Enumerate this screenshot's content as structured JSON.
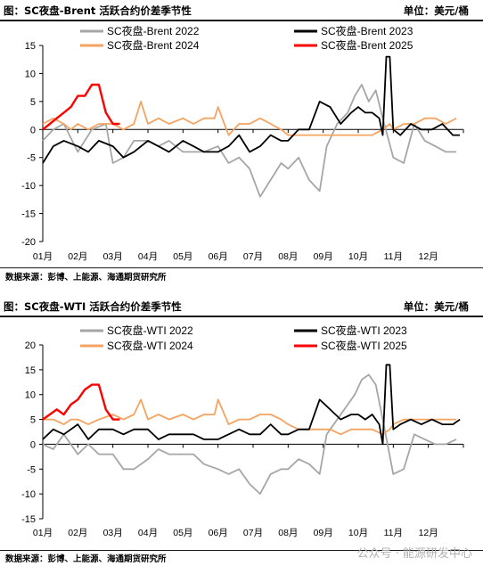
{
  "charts": [
    {
      "header_title": "图：SC夜盘-Brent 活跃合约价差季节性",
      "header_unit": "单位：美元/桶",
      "source": "数据来源：彭博、上能源、海通期货研究所"
    },
    {
      "header_title": "图：SC夜盘-WTI 活跃合约价差季节性",
      "header_unit": "单位：美元/桶",
      "source": "数据来源：彭博、上能源、海通期货研究所"
    }
  ],
  "watermark": "公众号 · 能源研发中心",
  "chart_data": [
    {
      "type": "line",
      "title": "",
      "ylim": [
        -20,
        15
      ],
      "yticks": [
        -20,
        -15,
        -10,
        -5,
        0,
        5,
        10,
        15
      ],
      "xlabels": [
        "01月",
        "02月",
        "03月",
        "04月",
        "05月",
        "06月",
        "07月",
        "08月",
        "09月",
        "10月",
        "11月",
        "12月"
      ],
      "legend_placement": "top",
      "series": [
        {
          "name": "SC夜盘-Brent 2022",
          "color": "#a6a6a6",
          "x": [
            0,
            0.3,
            0.6,
            1.0,
            1.4,
            1.8,
            2.0,
            2.3,
            2.6,
            3.0,
            3.3,
            3.6,
            4.0,
            4.3,
            4.6,
            5.0,
            5.3,
            5.6,
            5.9,
            6.2,
            6.5,
            6.8,
            7.0,
            7.3,
            7.6,
            7.9,
            8.1,
            8.4,
            8.7,
            8.9,
            9.1,
            9.3,
            9.5,
            9.7,
            10.0,
            10.3,
            10.6,
            10.9,
            11.2,
            11.5,
            11.8
          ],
          "y": [
            -2,
            0,
            1,
            -4,
            0,
            1,
            -6,
            -5,
            -2,
            -2,
            -3,
            -2,
            -4,
            -4,
            -4,
            -3,
            -6,
            -5,
            -7,
            -12,
            -9,
            -6,
            -7,
            -5,
            -9,
            -11,
            -3,
            1,
            3,
            6,
            8,
            5,
            7,
            2,
            -5,
            -6,
            1,
            -2,
            -3,
            -4,
            -4
          ]
        },
        {
          "name": "SC夜盘-Brent 2023",
          "color": "#000000",
          "x": [
            0,
            0.3,
            0.6,
            1.0,
            1.3,
            1.6,
            2.0,
            2.3,
            2.6,
            3.0,
            3.3,
            3.6,
            4.0,
            4.3,
            4.6,
            5.0,
            5.3,
            5.6,
            5.9,
            6.2,
            6.5,
            6.8,
            7.0,
            7.3,
            7.6,
            7.9,
            8.2,
            8.5,
            8.8,
            9.0,
            9.2,
            9.4,
            9.6,
            9.7,
            9.8,
            9.9,
            10.0,
            10.2,
            10.5,
            10.8,
            11.1,
            11.4,
            11.7,
            11.9
          ],
          "y": [
            -6,
            -3,
            -2,
            -3,
            -4,
            -2,
            -3,
            -5,
            -4,
            -2,
            -3,
            -4,
            -2,
            -3,
            -4,
            -4,
            -3,
            -1,
            -4,
            -3,
            -1,
            -2,
            -2,
            0,
            0,
            5,
            4,
            1,
            3,
            4,
            3,
            3,
            2,
            -1,
            13,
            13,
            0,
            -1,
            1,
            0,
            0,
            1,
            -1,
            -1
          ]
        },
        {
          "name": "SC夜盘-Brent 2024",
          "color": "#f4a460",
          "x": [
            0,
            0.3,
            0.6,
            0.8,
            1.0,
            1.3,
            1.6,
            2.0,
            2.3,
            2.6,
            2.8,
            3.0,
            3.3,
            3.6,
            4.0,
            4.3,
            4.6,
            4.9,
            5.0,
            5.3,
            5.6,
            5.9,
            6.2,
            6.5,
            6.8,
            7.0,
            7.3,
            7.6,
            7.9,
            8.2,
            8.5,
            8.8,
            9.1,
            9.4,
            9.7,
            9.9,
            10.0,
            10.3,
            10.6,
            10.9,
            11.2,
            11.5,
            11.8
          ],
          "y": [
            1,
            2,
            1,
            0,
            1,
            0,
            1,
            1,
            0,
            1,
            5,
            1,
            2,
            1,
            2,
            1,
            2,
            2,
            4,
            -1,
            1,
            1,
            2,
            1,
            0,
            -1,
            -1,
            -1,
            -1,
            -1,
            -1,
            -1,
            -1,
            -1,
            0,
            1,
            0,
            1,
            1,
            2,
            2,
            1,
            2
          ]
        },
        {
          "name": "SC夜盘-Brent 2025",
          "color": "#ff0000",
          "x": [
            0,
            0.2,
            0.4,
            0.6,
            0.8,
            1.0,
            1.2,
            1.4,
            1.6,
            1.8,
            2.0,
            2.2
          ],
          "y": [
            0,
            1,
            2,
            3,
            4,
            6,
            6,
            8,
            8,
            3,
            1,
            1
          ]
        }
      ]
    },
    {
      "type": "line",
      "title": "",
      "ylim": [
        -15,
        20
      ],
      "yticks": [
        -15,
        -10,
        -5,
        0,
        5,
        10,
        15,
        20
      ],
      "xlabels": [
        "01月",
        "02月",
        "03月",
        "04月",
        "05月",
        "06月",
        "07月",
        "08月",
        "09月",
        "10月",
        "11月",
        "12月"
      ],
      "legend_placement": "top",
      "series": [
        {
          "name": "SC夜盘-WTI 2022",
          "color": "#a6a6a6",
          "x": [
            0,
            0.3,
            0.6,
            1.0,
            1.3,
            1.6,
            2.0,
            2.3,
            2.6,
            3.0,
            3.3,
            3.6,
            4.0,
            4.3,
            4.6,
            5.0,
            5.3,
            5.6,
            5.9,
            6.2,
            6.5,
            6.8,
            7.0,
            7.3,
            7.6,
            7.9,
            8.1,
            8.4,
            8.7,
            8.9,
            9.1,
            9.3,
            9.5,
            9.7,
            10.0,
            10.3,
            10.6,
            10.9,
            11.2,
            11.5,
            11.8
          ],
          "y": [
            0,
            -1,
            2,
            -2,
            0,
            -2,
            -2,
            -5,
            -5,
            -3,
            -1,
            -2,
            -2,
            -2,
            -4,
            -5,
            -6,
            -5,
            -8,
            -10,
            -6,
            -5,
            -5,
            -3,
            -4,
            -6,
            2,
            5,
            8,
            10,
            13,
            14,
            12,
            5,
            -6,
            -5,
            2,
            1,
            0,
            0,
            1
          ]
        },
        {
          "name": "SC夜盘-WTI 2023",
          "color": "#000000",
          "x": [
            0,
            0.3,
            0.6,
            1.0,
            1.3,
            1.6,
            2.0,
            2.3,
            2.6,
            3.0,
            3.3,
            3.6,
            4.0,
            4.3,
            4.6,
            5.0,
            5.3,
            5.6,
            5.9,
            6.2,
            6.5,
            6.8,
            7.0,
            7.3,
            7.6,
            7.9,
            8.2,
            8.5,
            8.8,
            9.0,
            9.2,
            9.4,
            9.6,
            9.7,
            9.8,
            9.9,
            10.0,
            10.2,
            10.5,
            10.8,
            11.1,
            11.4,
            11.7,
            11.9
          ],
          "y": [
            1,
            3,
            2,
            4,
            1,
            3,
            3,
            2,
            3,
            3,
            1,
            2,
            2,
            2,
            1,
            1,
            2,
            3,
            2,
            2,
            4,
            2,
            2,
            3,
            3,
            9,
            7,
            5,
            6,
            6,
            5,
            6,
            4,
            0,
            16,
            16,
            3,
            4,
            5,
            4,
            5,
            4,
            4,
            5
          ]
        },
        {
          "name": "SC夜盘-WTI 2024",
          "color": "#f4a460",
          "x": [
            0,
            0.3,
            0.6,
            0.8,
            1.0,
            1.3,
            1.6,
            2.0,
            2.3,
            2.6,
            2.8,
            3.0,
            3.3,
            3.6,
            4.0,
            4.3,
            4.6,
            4.9,
            5.0,
            5.3,
            5.6,
            5.9,
            6.2,
            6.5,
            6.8,
            7.0,
            7.3,
            7.6,
            7.9,
            8.2,
            8.5,
            8.8,
            9.1,
            9.4,
            9.7,
            9.9,
            10.0,
            10.3,
            10.6,
            10.9,
            11.2,
            11.5,
            11.8
          ],
          "y": [
            5,
            5,
            4,
            5,
            5,
            4,
            5,
            6,
            5,
            6,
            9,
            5,
            6,
            5,
            6,
            5,
            6,
            6,
            9,
            4,
            5,
            5,
            6,
            6,
            5,
            4,
            3,
            3,
            3,
            3,
            2,
            3,
            3,
            3,
            2,
            3,
            4,
            5,
            5,
            5,
            5,
            5,
            5
          ]
        },
        {
          "name": "SC夜盘-WTI 2025",
          "color": "#ff0000",
          "x": [
            0,
            0.2,
            0.4,
            0.6,
            0.8,
            1.0,
            1.2,
            1.4,
            1.6,
            1.8,
            2.0,
            2.2
          ],
          "y": [
            5,
            6,
            7,
            6,
            8,
            9,
            11,
            12,
            12,
            7,
            5,
            5
          ]
        }
      ]
    }
  ]
}
